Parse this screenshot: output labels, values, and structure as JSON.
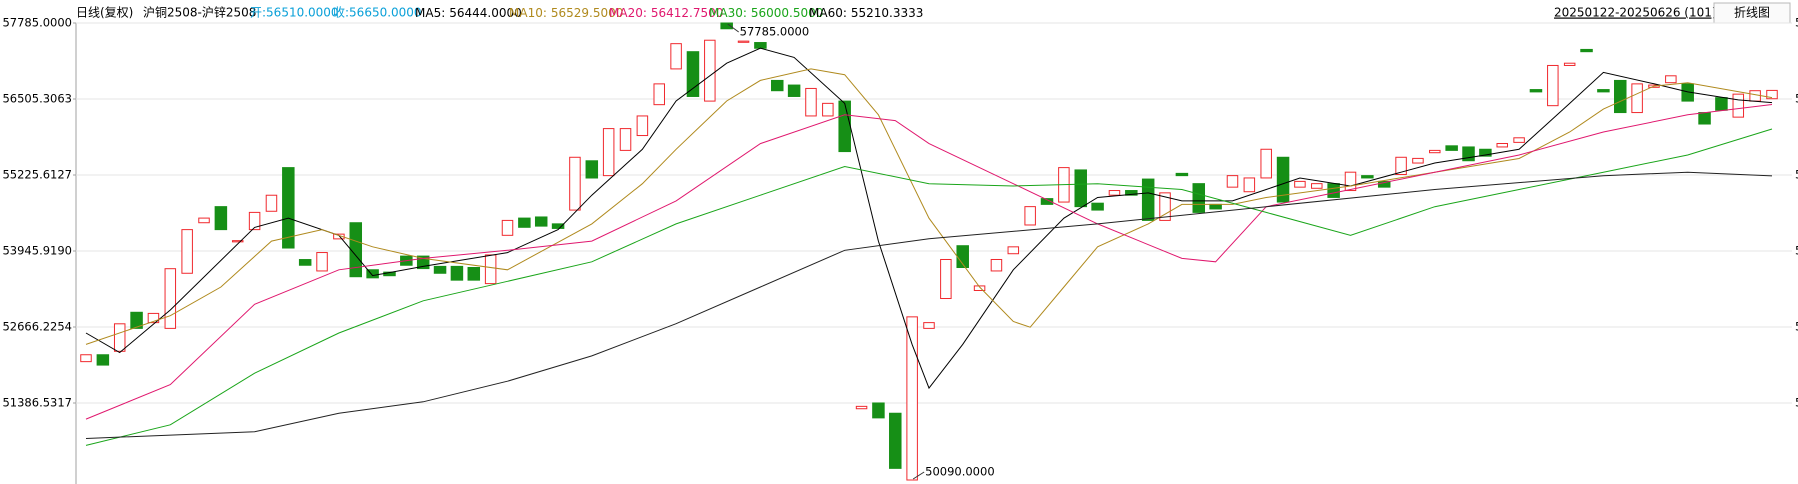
{
  "header": {
    "period": "日线(复权)",
    "symbol": "沪铜2508-沪锌2508",
    "open_text": "开:56510.0000",
    "close_text": "收:56650.0000",
    "range": "20250122-20250626 (101)",
    "button": "折线图"
  },
  "chart_data": {
    "type": "candlestick",
    "ylim": [
      50090,
      57785
    ],
    "yticks": [
      {
        "value": 57785,
        "label": "57785.0000"
      },
      56505.3063,
      55225.6127,
      {
        "value": 53945.919,
        "label": "53945.9190"
      },
      52666.2254,
      51386.5317
    ],
    "grid": true,
    "up_color": "#f0282d",
    "down_color": "#168f16",
    "open": [
      52083,
      52199,
      52257,
      52914,
      52740,
      52643,
      53571,
      54422,
      54693,
      54100,
      54306,
      54615,
      55350,
      53802,
      53610,
      54150,
      54422,
      53630,
      53590,
      53860,
      53860,
      53687,
      53687,
      53668,
      53397,
      54210,
      54500,
      54519,
      54403,
      54635,
      55465,
      55215,
      55640,
      55890,
      56410,
      57012,
      57302,
      56470,
      57785,
      57460,
      57456,
      56818,
      56740,
      56220,
      56220,
      56470,
      51290,
      51387,
      51214,
      50090,
      52643,
      53146,
      54035,
      53281,
      53610,
      53900,
      54384,
      54828,
      54770,
      55311,
      54751,
      54886,
      54964,
      55157,
      54461,
      55253,
      55080,
      54731,
      55021,
      54944,
      55176,
      55524,
      55021,
      55002,
      55080,
      54964,
      55215,
      55118,
      55234,
      55427,
      55601,
      55717,
      55698,
      55659,
      55698,
      55775,
      56664,
      56393,
      57070,
      57340,
      56664,
      56818,
      56277,
      56702,
      56780,
      56760,
      56277,
      56528,
      56200,
      56470,
      56510
    ],
    "close": [
      52199,
      52025,
      52720,
      52643,
      52895,
      53648,
      54306,
      54500,
      54306,
      54120,
      54596,
      54885,
      53996,
      53706,
      53920,
      54230,
      53513,
      53494,
      53530,
      53706,
      53650,
      53571,
      53455,
      53455,
      53880,
      54461,
      54345,
      54365,
      54326,
      55524,
      55175,
      56007,
      56007,
      56220,
      56760,
      57437,
      56548,
      57495,
      57688,
      57480,
      57360,
      56645,
      56548,
      56683,
      56432,
      55620,
      51330,
      51136,
      50286,
      52837,
      52740,
      53803,
      53668,
      53358,
      53803,
      54016,
      54693,
      54731,
      55350,
      54693,
      54635,
      54964,
      54886,
      54461,
      54925,
      55215,
      54596,
      54654,
      55215,
      55176,
      55659,
      54770,
      55118,
      55080,
      54848,
      55273,
      55176,
      55021,
      55524,
      55505,
      55640,
      55640,
      55466,
      55543,
      55756,
      55852,
      56625,
      57070,
      57108,
      57302,
      56625,
      56277,
      56760,
      56740,
      56896,
      56470,
      56084,
      56316,
      56587,
      56645,
      56650
    ],
    "annotations": [
      {
        "value": 57785,
        "label": "57785.0000"
      },
      {
        "value": 50090,
        "label": "50090.0000"
      }
    ],
    "series": [
      {
        "name": "MA5:",
        "legend_value": "56444.0000",
        "color": "#000000",
        "x": [
          0,
          2,
          5,
          10,
          12,
          15,
          17,
          20,
          25,
          28,
          30,
          33,
          35,
          38,
          40,
          42,
          45,
          47,
          49,
          50,
          52,
          55,
          58,
          60,
          63,
          65,
          68,
          70,
          72,
          75,
          78,
          80,
          83,
          85,
          88,
          90,
          93,
          95,
          98,
          100
        ],
        "values": [
          52566,
          52237,
          52952,
          54344,
          54499,
          54209,
          53532,
          53687,
          53919,
          54306,
          54885,
          55659,
          56471,
          57108,
          57360,
          57205,
          56432,
          54112,
          52373,
          51638,
          52373,
          53629,
          54499,
          54847,
          54924,
          54789,
          54789,
          54982,
          55175,
          55040,
          55272,
          55427,
          55562,
          55659,
          56432,
          56954,
          56761,
          56625,
          56490,
          56444
        ]
      },
      {
        "name": "MA10:",
        "legend_value": "56529.5000",
        "color": "#b08a1e",
        "x": [
          0,
          5,
          8,
          11,
          14,
          17,
          20,
          25,
          30,
          33,
          35,
          38,
          40,
          43,
          45,
          47,
          50,
          53,
          55,
          56,
          58,
          60,
          63,
          65,
          68,
          70,
          75,
          80,
          85,
          88,
          90,
          93,
          95,
          100
        ],
        "values": [
          52373,
          52856,
          53339,
          54112,
          54306,
          54016,
          53822,
          53629,
          54402,
          55079,
          55659,
          56471,
          56818,
          57012,
          56915,
          56239,
          54499,
          53339,
          52759,
          52663,
          53339,
          54016,
          54402,
          54731,
          54731,
          54847,
          55040,
          55272,
          55504,
          55949,
          56335,
          56722,
          56780,
          56529.5
        ]
      },
      {
        "name": "MA20:",
        "legend_value": "56412.7500",
        "color": "#e0186e",
        "x": [
          0,
          5,
          10,
          15,
          20,
          25,
          30,
          35,
          40,
          45,
          48,
          50,
          55,
          60,
          65,
          67,
          70,
          75,
          80,
          85,
          90,
          95,
          100
        ],
        "values": [
          51116,
          51696,
          53049,
          53629,
          53822,
          53958,
          54112,
          54789,
          55755,
          56239,
          56142,
          55755,
          55079,
          54402,
          53822,
          53764,
          54692,
          54982,
          55272,
          55562,
          55949,
          56239,
          56412.75
        ]
      },
      {
        "name": "MA30:",
        "legend_value": "56000.5000",
        "color": "#1aa51a",
        "x": [
          0,
          5,
          10,
          15,
          20,
          25,
          30,
          35,
          40,
          45,
          50,
          55,
          60,
          65,
          70,
          75,
          80,
          85,
          90,
          95,
          100
        ],
        "values": [
          50672,
          51019,
          51889,
          52566,
          53107,
          53436,
          53764,
          54402,
          54885,
          55369,
          55079,
          55040,
          55079,
          54982,
          54596,
          54209,
          54692,
          54982,
          55272,
          55562,
          56000.5
        ]
      },
      {
        "name": "MA60:",
        "legend_value": "55210.3333",
        "color": "#222222",
        "x": [
          0,
          10,
          15,
          20,
          25,
          30,
          35,
          40,
          45,
          50,
          60,
          70,
          80,
          90,
          95,
          100
        ],
        "values": [
          50788,
          50904,
          51213,
          51406,
          51754,
          52179,
          52721,
          53339,
          53958,
          54151,
          54402,
          54692,
          54982,
          55214,
          55272,
          55210.3333
        ]
      }
    ]
  }
}
